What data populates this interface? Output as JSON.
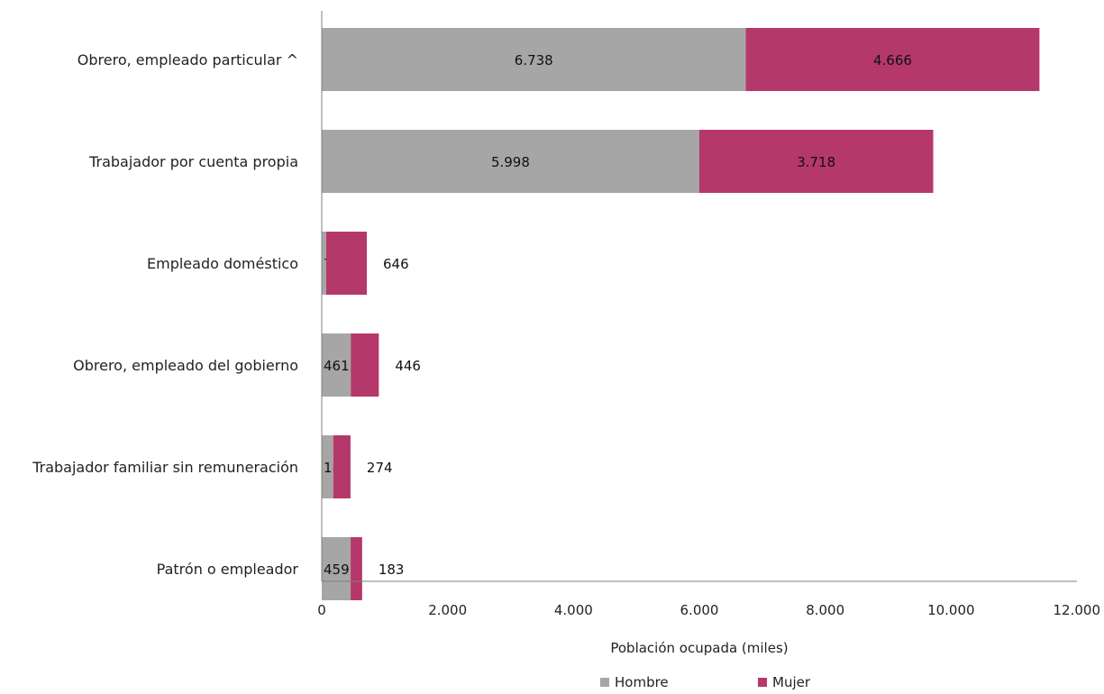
{
  "chart_data": {
    "type": "bar",
    "orientation": "horizontal",
    "stacked": true,
    "categories": [
      "Obrero, empleado particular ^",
      "Trabajador por cuenta propia",
      "Empleado doméstico",
      "Obrero, empleado del gobierno",
      "Trabajador familiar sin remuneración",
      "Patrón o empleador"
    ],
    "series": [
      {
        "name": "Hombre",
        "color": "#a6a6a6",
        "values": [
          6738,
          5998,
          70,
          461,
          183,
          459
        ],
        "labels": [
          "6.738",
          "5.998",
          "70",
          "461",
          "183",
          "459"
        ]
      },
      {
        "name": "Mujer",
        "color": "#b5386b",
        "values": [
          4666,
          3718,
          646,
          446,
          274,
          183
        ],
        "labels": [
          "4.666",
          "3.718",
          "646",
          "446",
          "274",
          "183"
        ]
      }
    ],
    "xlim": [
      0,
      12000
    ],
    "x_ticks": [
      0,
      2000,
      4000,
      6000,
      8000,
      10000,
      12000
    ],
    "x_tick_labels": [
      "0",
      "2.000",
      "4.000",
      "6.000",
      "8.000",
      "10.000",
      "12.000"
    ],
    "xlabel": "Población ocupada (miles)",
    "ylabel": "",
    "title": "",
    "grid": false,
    "legend_position": "bottom"
  }
}
